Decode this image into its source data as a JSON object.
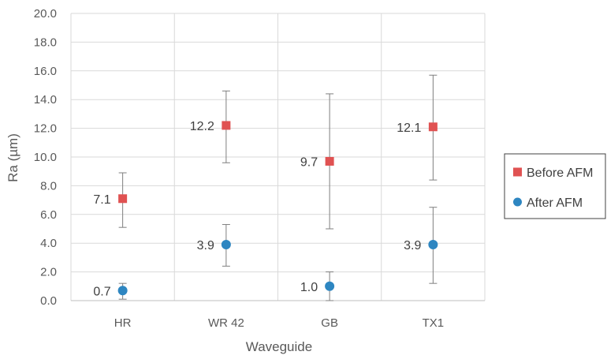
{
  "chart_data": {
    "type": "scatter",
    "title": "",
    "xlabel": "Waveguide",
    "ylabel": "Ra (µm)",
    "categories": [
      "HR",
      "WR 42",
      "GB",
      "TX1"
    ],
    "ylim": [
      0,
      20
    ],
    "yticks": [
      0,
      2,
      4,
      6,
      8,
      10,
      12,
      14,
      16,
      18,
      20
    ],
    "ytick_labels": [
      "0.0",
      "2.0",
      "4.0",
      "6.0",
      "8.0",
      "10.0",
      "12.0",
      "14.0",
      "16.0",
      "18.0",
      "20.0"
    ],
    "grid": "vertical and horizontal",
    "legend_position": "right",
    "series": [
      {
        "name": "Before AFM",
        "marker": "square",
        "color": "#E05252",
        "values": [
          7.1,
          12.2,
          9.7,
          12.1
        ],
        "labels": [
          "7.1",
          "12.2",
          "9.7",
          "12.1"
        ],
        "error_low": [
          5.1,
          9.6,
          5.0,
          8.4
        ],
        "error_high": [
          8.9,
          14.6,
          14.4,
          15.7
        ]
      },
      {
        "name": "After AFM",
        "marker": "circle",
        "color": "#2E86C1",
        "values": [
          0.7,
          3.9,
          1.0,
          3.9
        ],
        "labels": [
          "0.7",
          "3.9",
          "1.0",
          "3.9"
        ],
        "error_low": [
          0.1,
          2.4,
          0.0,
          1.2
        ],
        "error_high": [
          1.2,
          5.3,
          2.0,
          6.5
        ]
      }
    ]
  }
}
